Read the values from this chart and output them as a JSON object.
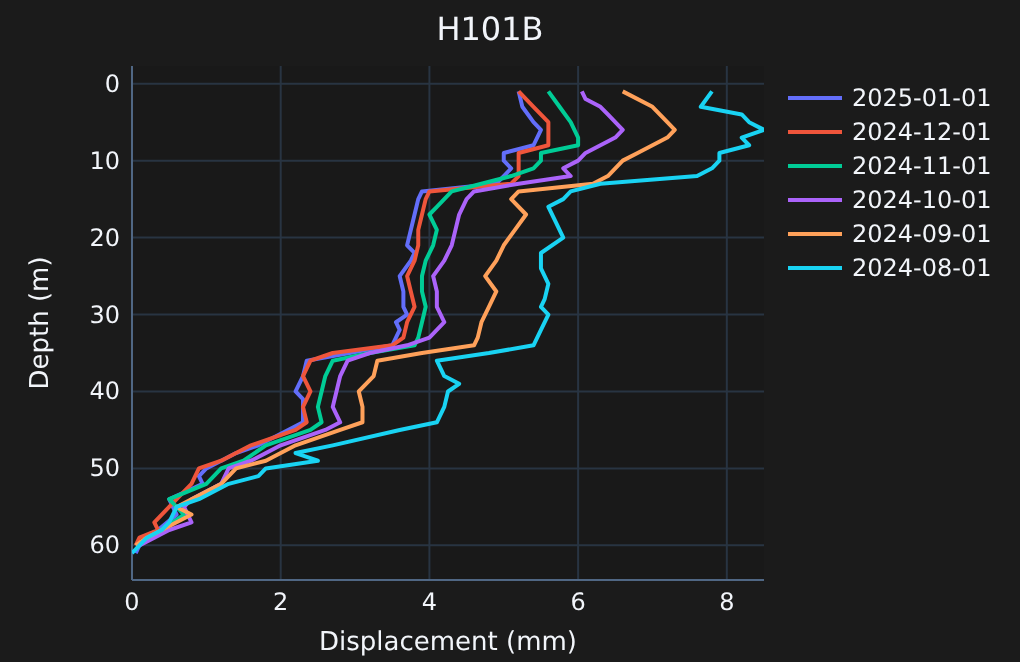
{
  "chart_data": {
    "type": "line",
    "title": "H101B",
    "xlabel": "Displacement (mm)",
    "ylabel": "Depth (m)",
    "xlim": [
      0,
      8.5
    ],
    "xticks": [
      0,
      2,
      4,
      6,
      8
    ],
    "ylim": [
      64.5,
      -2.3
    ],
    "yticks": [
      0,
      10,
      20,
      30,
      40,
      50,
      60
    ],
    "grid": true,
    "legend": "right",
    "marker": "none",
    "line_style": "solid",
    "series": [
      {
        "name": "2025-01-01",
        "color": "#636efa",
        "x": [
          5.2,
          5.25,
          5.4,
          5.5,
          5.4,
          5.0,
          5.0,
          5.1,
          5.0,
          4.9,
          3.9,
          3.85,
          3.8,
          3.75,
          3.7,
          3.8,
          3.75,
          3.6,
          3.65,
          3.65,
          3.7,
          3.55,
          3.6,
          3.5,
          2.35,
          2.3,
          2.2,
          2.3,
          2.3,
          2.3,
          2.1,
          1.7,
          1.4,
          1.0,
          0.9,
          0.95,
          0.5,
          0.55,
          0.6,
          0.35,
          0.2,
          0.1,
          0.05
        ],
        "values": [
          1,
          3,
          5,
          6,
          8,
          9,
          10,
          11,
          12,
          13,
          14,
          15,
          17,
          19,
          21,
          22,
          23,
          25,
          27,
          29,
          30,
          31,
          32,
          34,
          36,
          38,
          40,
          41,
          43,
          44,
          45,
          47,
          48,
          50,
          51,
          52,
          54,
          55,
          56,
          58,
          59,
          60,
          61
        ]
      },
      {
        "name": "2024-12-01",
        "color": "#ef553b",
        "x": [
          5.2,
          5.4,
          5.6,
          5.6,
          5.6,
          5.2,
          5.2,
          5.2,
          5.1,
          4.0,
          3.95,
          3.9,
          3.85,
          3.85,
          3.8,
          3.7,
          3.75,
          3.8,
          3.7,
          3.65,
          3.5,
          2.7,
          2.4,
          2.3,
          2.4,
          2.3,
          2.35,
          2.2,
          1.6,
          1.2,
          0.9,
          0.8,
          0.6,
          0.5,
          0.3,
          0.35,
          0.1,
          0.05
        ],
        "values": [
          1,
          3,
          5,
          7,
          8,
          9,
          11,
          12,
          13,
          14,
          15,
          17,
          19,
          21,
          23,
          25,
          27,
          29,
          31,
          33,
          34,
          35,
          36,
          38,
          40,
          42,
          44,
          45,
          47,
          49,
          50,
          52,
          54,
          55,
          57,
          58,
          59,
          60
        ]
      },
      {
        "name": "2024-11-01",
        "color": "#00cc96",
        "x": [
          5.6,
          5.75,
          5.9,
          6.0,
          6.0,
          5.5,
          5.5,
          5.4,
          5.1,
          4.7,
          4.3,
          4.2,
          4.1,
          4.0,
          4.1,
          4.05,
          3.95,
          3.9,
          3.9,
          3.95,
          3.9,
          3.85,
          3.8,
          3.2,
          2.7,
          2.6,
          2.55,
          2.5,
          2.55,
          2.4,
          1.8,
          1.5,
          1.2,
          1.0,
          0.5,
          0.6,
          0.7,
          0.4,
          0.2,
          0.1
        ],
        "values": [
          1,
          3,
          5,
          7,
          8,
          9,
          10,
          11,
          12,
          13,
          14,
          15,
          16,
          17,
          19,
          21,
          23,
          25,
          27,
          29,
          31,
          33,
          34,
          35,
          36,
          38,
          40,
          42,
          44,
          45,
          47,
          49,
          50,
          52,
          54,
          55,
          56,
          58,
          59,
          60
        ]
      },
      {
        "name": "2024-10-01",
        "color": "#ab63fa",
        "x": [
          6.05,
          6.1,
          6.3,
          6.4,
          6.5,
          6.6,
          6.5,
          6.3,
          6.1,
          6.0,
          5.8,
          5.9,
          5.2,
          4.6,
          4.5,
          4.4,
          4.35,
          4.3,
          4.2,
          4.05,
          4.1,
          4.1,
          4.2,
          4.0,
          3.7,
          3.2,
          2.9,
          2.8,
          2.75,
          2.7,
          2.8,
          2.6,
          2.0,
          1.6,
          1.3,
          1.2,
          0.8,
          0.7,
          0.8,
          0.5,
          0.3,
          0.1
        ],
        "values": [
          1,
          2,
          3,
          4,
          5,
          6,
          7,
          8,
          9,
          10,
          11,
          12,
          13,
          14,
          15,
          17,
          19,
          21,
          23,
          25,
          27,
          29,
          31,
          33,
          34,
          35,
          36,
          38,
          40,
          42,
          44,
          45,
          47,
          49,
          50,
          52,
          54,
          55,
          57,
          58,
          59,
          60
        ]
      },
      {
        "name": "2024-09-01",
        "color": "#ffa15a",
        "x": [
          6.6,
          7.0,
          7.2,
          7.3,
          7.2,
          7.0,
          6.8,
          6.6,
          6.5,
          6.4,
          6.2,
          5.2,
          5.1,
          5.3,
          5.15,
          5.0,
          4.9,
          4.75,
          4.9,
          4.8,
          4.7,
          4.65,
          4.6,
          3.9,
          3.3,
          3.25,
          3.05,
          3.1,
          3.1,
          2.8,
          2.2,
          1.8,
          1.4,
          1.2,
          0.8,
          0.6,
          0.8,
          0.4,
          0.2,
          0.05
        ],
        "values": [
          1,
          3,
          5,
          6,
          7,
          8,
          9,
          10,
          11,
          12,
          13,
          14,
          15,
          17,
          19,
          21,
          23,
          25,
          27,
          29,
          31,
          33,
          34,
          35,
          36,
          38,
          40,
          42,
          44,
          45,
          47,
          49,
          50,
          52,
          54,
          55,
          56,
          58,
          59,
          60
        ]
      },
      {
        "name": "2024-08-01",
        "color": "#19d3f3",
        "x": [
          7.8,
          7.65,
          8.2,
          8.3,
          8.5,
          8.2,
          8.3,
          7.9,
          7.9,
          7.8,
          7.6,
          6.3,
          5.9,
          5.8,
          5.6,
          5.7,
          5.8,
          5.5,
          5.5,
          5.6,
          5.55,
          5.5,
          5.6,
          5.5,
          5.4,
          4.8,
          4.1,
          4.2,
          4.4,
          4.25,
          4.2,
          4.1,
          3.6,
          2.7,
          2.2,
          2.5,
          1.8,
          1.7,
          1.3,
          0.9,
          0.6,
          0.5,
          0.4,
          0.2,
          0.0
        ],
        "values": [
          1,
          3,
          4,
          5,
          6,
          7,
          8,
          9,
          10,
          11,
          12,
          13,
          14,
          15,
          16,
          18,
          20,
          22,
          24,
          26,
          28,
          29,
          30,
          32,
          34,
          35,
          36,
          38,
          39,
          40,
          42,
          44,
          45,
          47,
          48,
          49,
          50,
          51,
          52,
          54,
          55,
          57,
          58,
          59,
          61
        ]
      }
    ]
  }
}
